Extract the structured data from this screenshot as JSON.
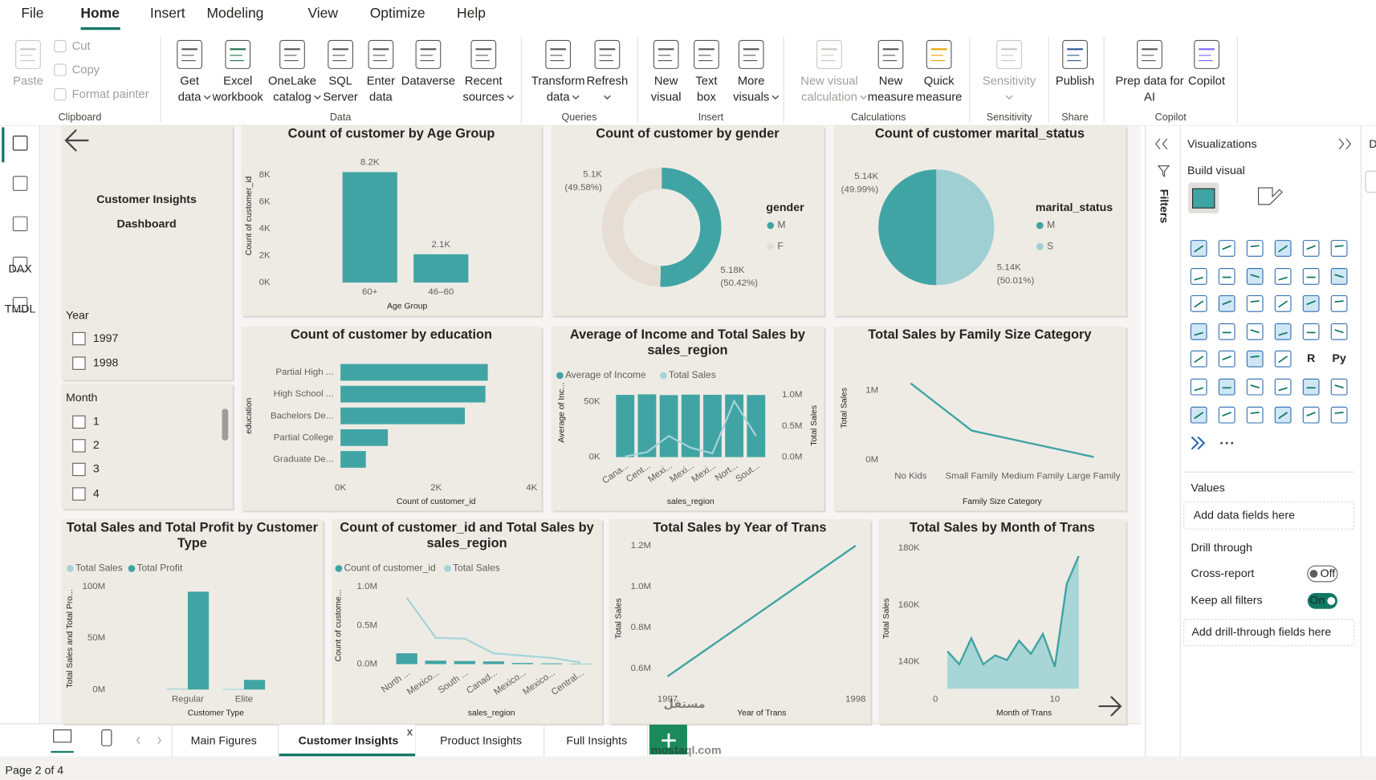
{
  "menu": [
    "File",
    "Home",
    "Insert",
    "Modeling",
    "View",
    "Optimize",
    "Help"
  ],
  "ribbon": [
    {
      "group": "Clipboard",
      "buttons": [
        {
          "lines": [
            "Paste"
          ],
          "disabled": true
        },
        {
          "lines": [
            "Cut"
          ],
          "disabled": true
        },
        {
          "lines": [
            "Copy"
          ],
          "disabled": true
        },
        {
          "lines": [
            "Format painter"
          ],
          "disabled": true
        }
      ]
    },
    {
      "group": "Data",
      "buttons": [
        {
          "lines": [
            "Get",
            "data"
          ],
          "dropdown": true
        },
        {
          "lines": [
            "Excel",
            "workbook"
          ]
        },
        {
          "lines": [
            "OneLake",
            "catalog"
          ],
          "dropdown": true
        },
        {
          "lines": [
            "SQL",
            "Server"
          ]
        },
        {
          "lines": [
            "Enter",
            "data"
          ]
        },
        {
          "lines": [
            "Dataverse"
          ]
        },
        {
          "lines": [
            "Recent",
            "sources"
          ],
          "dropdown": true
        }
      ]
    },
    {
      "group": "Queries",
      "buttons": [
        {
          "lines": [
            "Transform",
            "data"
          ],
          "dropdown": true
        },
        {
          "lines": [
            "Refresh"
          ],
          "dropdown": true
        }
      ]
    },
    {
      "group": "Insert",
      "buttons": [
        {
          "lines": [
            "New",
            "visual"
          ]
        },
        {
          "lines": [
            "Text",
            "box"
          ]
        },
        {
          "lines": [
            "More",
            "visuals"
          ],
          "dropdown": true
        }
      ]
    },
    {
      "group": "Calculations",
      "buttons": [
        {
          "lines": [
            "New visual",
            "calculation"
          ],
          "dropdown": true,
          "disabled": true
        },
        {
          "lines": [
            "New",
            "measure"
          ]
        },
        {
          "lines": [
            "Quick",
            "measure"
          ]
        }
      ]
    },
    {
      "group": "Sensitivity",
      "buttons": [
        {
          "lines": [
            "Sensitivity"
          ],
          "dropdown": true,
          "disabled": true
        }
      ]
    },
    {
      "group": "Share",
      "buttons": [
        {
          "lines": [
            "Publish"
          ]
        }
      ]
    },
    {
      "group": "Copilot",
      "buttons": [
        {
          "lines": [
            "Prep data for",
            "AI"
          ]
        },
        {
          "lines": [
            "Copilot"
          ]
        }
      ]
    }
  ],
  "view_icons": [
    "DAX",
    "TMDL"
  ],
  "canvas": {
    "title": [
      "Customer Insights",
      "Dashboard"
    ],
    "slicers": [
      {
        "title": "Year",
        "items": [
          "1997",
          "1998"
        ]
      },
      {
        "title": "Month",
        "items": [
          "1",
          "2",
          "3",
          "4"
        ]
      }
    ],
    "charts": [
      {
        "type": "bar",
        "title": [
          "Count of customer by Age Group"
        ],
        "categories": [
          "60+",
          "46–60"
        ],
        "values": [
          8200,
          2100
        ],
        "value_labels": [
          "8.2K",
          "2.1K"
        ],
        "color": "#41A4A4",
        "ylim": [
          0,
          8600
        ],
        "yticks": [
          {
            "value": 0,
            "label": "0K"
          },
          {
            "value": 2000,
            "label": "2K"
          },
          {
            "value": 4000,
            "label": "4K"
          },
          {
            "value": 6000,
            "label": "6K"
          },
          {
            "value": 8000,
            "label": "8K"
          }
        ],
        "x_label": "Age Group",
        "y_label": "Count of customer_id"
      },
      {
        "type": "donut",
        "title": [
          "Count of customer by gender"
        ],
        "legend_title": "gender",
        "categories": [
          "M",
          "F"
        ],
        "values": [
          5180,
          5100
        ],
        "value_labels": [
          "5.18K",
          "5.1K"
        ],
        "percent_labels": [
          "(50.42%)",
          "(49.58%)"
        ],
        "colors": [
          "#41A4A4",
          "#E6DED4"
        ]
      },
      {
        "type": "pie",
        "title": [
          "Count of customer marital_status"
        ],
        "legend_title": "marital_status",
        "categories": [
          "M",
          "S"
        ],
        "values": [
          5140,
          5140
        ],
        "value_labels": [
          "5.14K",
          "5.14K"
        ],
        "percent_labels": [
          "(49.99%)",
          "(50.01%)"
        ],
        "colors": [
          "#41A4A4",
          "#9FCFD3"
        ]
      },
      {
        "type": "hbar",
        "title": [
          "Count of customer by education"
        ],
        "categories": [
          "Partial High ...",
          "High School ...",
          "Bachelors De...",
          "Partial College",
          "Graduate De..."
        ],
        "values": [
          3080,
          3030,
          2600,
          990,
          530
        ],
        "color": "#41A4A4",
        "xlim": [
          0,
          4000
        ],
        "xticks": [
          {
            "value": 0,
            "label": "0K"
          },
          {
            "value": 2000,
            "label": "2K"
          },
          {
            "value": 4000,
            "label": "4K"
          }
        ],
        "x_label": "Count of customer_id",
        "y_label": "education"
      },
      {
        "type": "combo",
        "title": [
          "Average of Income and Total Sales by",
          "sales_region"
        ],
        "categories": [
          "Cana...",
          "Cent...",
          "Mexi...",
          "Mexi...",
          "Mexi...",
          "Nort...",
          "Sout..."
        ],
        "series": [
          {
            "name": "Average of Income",
            "color": "#41A4A4",
            "mark": "bar",
            "values": [
              56000,
              56500,
              55800,
              56200,
              56100,
              56300,
              55900
            ]
          },
          {
            "name": "Total Sales",
            "color": "#A4D4D7",
            "mark": "line",
            "axis": "y2",
            "values": [
              10000,
              80000,
              340000,
              150000,
              60000,
              900000,
              340000
            ]
          }
        ],
        "ylim": [
          0,
          60000
        ],
        "yticks": [
          {
            "value": 0,
            "label": "0K"
          },
          {
            "value": 50000,
            "label": "50K"
          }
        ],
        "y2lim": [
          0,
          1070000
        ],
        "y2ticks": [
          {
            "value": 0,
            "label": "0.0M"
          },
          {
            "value": 500000,
            "label": "0.5M"
          },
          {
            "value": 1000000,
            "label": "1.0M"
          }
        ],
        "x_label": "sales_region",
        "y_label": "Average of Inc...",
        "y2_label": "Total Sales"
      },
      {
        "type": "line",
        "title": [
          "Total Sales by Family Size Category"
        ],
        "categories": [
          "No Kids",
          "Small Family",
          "Medium Family",
          "Large Family"
        ],
        "values": [
          1100000,
          420000,
          230000,
          40000
        ],
        "color": "#41A4A4",
        "ylim": [
          0,
          1200000
        ],
        "yticks": [
          {
            "value": 0,
            "label": "0M"
          },
          {
            "value": 1000000,
            "label": "1M"
          }
        ],
        "x_label": "Family Size Category",
        "y_label": "Total Sales"
      },
      {
        "type": "grouped_bar",
        "title": [
          "Total Sales and Total Profit by Customer",
          "Type"
        ],
        "categories": [
          "Regular",
          "Elite"
        ],
        "series": [
          {
            "name": "Total Sales",
            "color": "#A4D4D7",
            "values": [
              1000000,
              700000
            ]
          },
          {
            "name": "Total Profit",
            "color": "#41A4A4",
            "values": [
              95000000,
              9400000
            ]
          }
        ],
        "ylim": [
          0,
          103000000
        ],
        "yticks": [
          {
            "value": 0,
            "label": "0M"
          },
          {
            "value": 50000000,
            "label": "50M"
          },
          {
            "value": 100000000,
            "label": "100M"
          }
        ],
        "x_label": "Customer Type",
        "y_label": "Total Sales and Total Pro..."
      },
      {
        "type": "combo",
        "title": [
          "Count of customer_id and Total Sales by",
          "sales_region"
        ],
        "categories": [
          "North ...",
          "Mexico...",
          "South ...",
          "Canad...",
          "Mexico...",
          "Mexico...",
          "Central..."
        ],
        "series": [
          {
            "name": "Count of customer_id",
            "color": "#41A4A4",
            "mark": "bar",
            "values": [
              140000,
              45000,
              40000,
              35000,
              15000,
              10000,
              5000
            ]
          },
          {
            "name": "Total Sales",
            "color": "#A4D4D7",
            "mark": "line",
            "values": [
              860000,
              340000,
              330000,
              140000,
              110000,
              80000,
              20000
            ]
          }
        ],
        "ylim": [
          0,
          1100000
        ],
        "yticks": [
          {
            "value": 0,
            "label": "0.0M"
          },
          {
            "value": 500000,
            "label": "0.5M"
          },
          {
            "value": 1000000,
            "label": "1.0M"
          }
        ],
        "x_label": "sales_region",
        "y_label": "Count of custome..."
      },
      {
        "type": "line",
        "title": [
          "Total Sales by Year of Trans"
        ],
        "x": [
          1997,
          1998
        ],
        "values": [
          560000,
          1200000
        ],
        "color": "#41A4A4",
        "xlim": [
          1996.95,
          1998.07
        ],
        "xticks": [
          1997,
          1998
        ],
        "ylim": [
          500000,
          1230000
        ],
        "yticks": [
          {
            "value": 600000,
            "label": "0.6M"
          },
          {
            "value": 800000,
            "label": "0.8M"
          },
          {
            "value": 1000000,
            "label": "1.0M"
          },
          {
            "value": 1200000,
            "label": "1.2M"
          }
        ],
        "x_label": "Year of Trans",
        "y_label": "Total Sales"
      },
      {
        "type": "area",
        "title": [
          "Total Sales by Month of Trans"
        ],
        "x": [
          1,
          2,
          3,
          4,
          5,
          6,
          7,
          8,
          9,
          10,
          11,
          12
        ],
        "values": [
          143700,
          139100,
          148300,
          139100,
          142200,
          140600,
          147400,
          142800,
          149800,
          138200,
          167400,
          177200
        ],
        "color": "#41A4A4",
        "fill": "#A8D5D6",
        "xlim": [
          0,
          12.5
        ],
        "xticks": [
          0,
          10
        ],
        "ylim": [
          130500,
          183000
        ],
        "yticks": [
          {
            "value": 140000,
            "label": "140K"
          },
          {
            "value": 160000,
            "label": "160K"
          },
          {
            "value": 180000,
            "label": "180K"
          }
        ],
        "x_label": "Month of Trans",
        "y_label": "Total Sales"
      }
    ]
  },
  "pages": [
    {
      "name": "Main Figures"
    },
    {
      "name": "Customer Insights",
      "active": true,
      "close": "x"
    },
    {
      "name": "Product Insights"
    },
    {
      "name": "Full Insights"
    }
  ],
  "status": "Page 2 of 4",
  "panes": {
    "filters": "Filters",
    "data_edge": "D",
    "visualizations": {
      "title": "Visualizations",
      "build": "Build visual",
      "script_icons": [
        "R",
        "Py"
      ],
      "values": "Values",
      "values_well": "Add data fields here",
      "drill": "Drill through",
      "cross_report": "Cross-report",
      "cross_state": "Off",
      "keep_filters": "Keep all filters",
      "keep_state": "On",
      "drill_well": "Add drill-through fields here"
    }
  },
  "watermark": [
    "مستقل",
    "mostaql.com"
  ]
}
